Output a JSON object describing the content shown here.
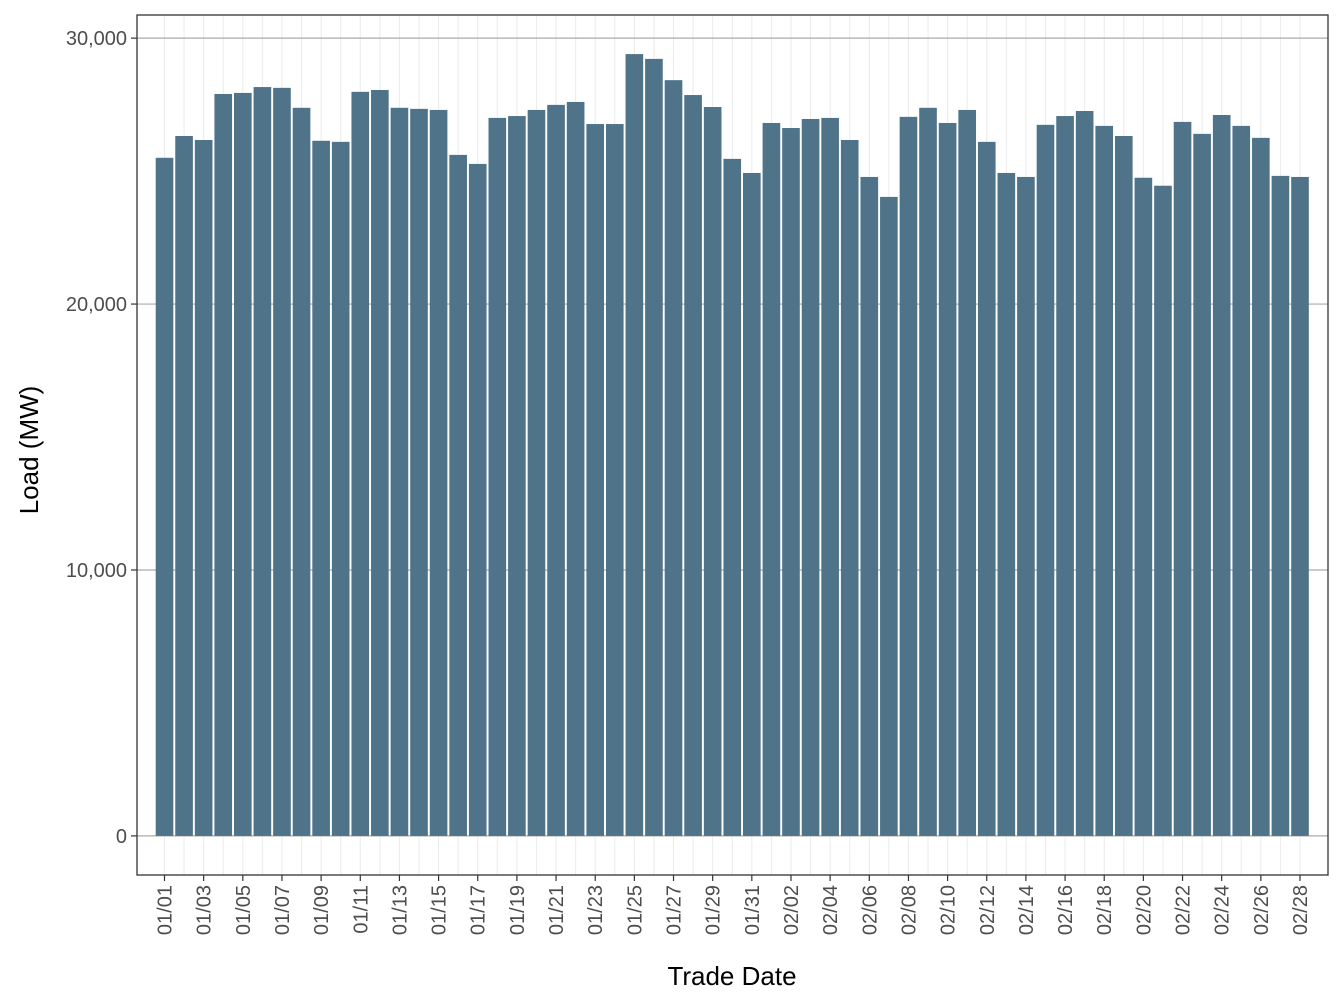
{
  "chart_data": {
    "type": "bar",
    "x_label": "Trade Date",
    "y_label": "Load (MW)",
    "categories": [
      "01/01",
      null,
      "01/03",
      null,
      "01/05",
      null,
      "01/07",
      null,
      "01/09",
      null,
      "01/11",
      null,
      "01/13",
      null,
      "01/15",
      null,
      "01/17",
      null,
      "01/19",
      null,
      "01/21",
      null,
      "01/23",
      null,
      "01/25",
      null,
      "01/27",
      null,
      "01/29",
      null,
      "01/31",
      null,
      "02/02",
      null,
      "02/04",
      null,
      "02/06",
      null,
      "02/08",
      null,
      "02/10",
      null,
      "02/12",
      null,
      "02/14",
      null,
      "02/16",
      null,
      "02/18",
      null,
      "02/20",
      null,
      "02/22",
      null,
      "02/24",
      null,
      "02/26",
      null,
      "02/28"
    ],
    "values": [
      25500,
      26320,
      26170,
      27900,
      27940,
      28160,
      28130,
      27380,
      26140,
      26100,
      27980,
      28050,
      27380,
      27340,
      27300,
      25610,
      25270,
      27000,
      27070,
      27300,
      27490,
      27600,
      26770,
      26770,
      29400,
      29220,
      28420,
      27860,
      27410,
      25460,
      24930,
      26810,
      26620,
      26960,
      27000,
      26170,
      24780,
      24030,
      27040,
      27380,
      26810,
      27300,
      26100,
      24930,
      24780,
      26740,
      27070,
      27260,
      26700,
      26320,
      24750,
      24450,
      26850,
      26400,
      27110,
      26700,
      26250,
      24820,
      24780
    ],
    "color": "#4f7388",
    "ylim": [
      -1470,
      30870
    ],
    "yticks": [
      0,
      {
        "value": 10000,
        "label": "10,000"
      },
      {
        "value": 20000,
        "label": "20,000"
      },
      {
        "value": 30000,
        "label": "30,000"
      }
    ],
    "grid": true
  }
}
